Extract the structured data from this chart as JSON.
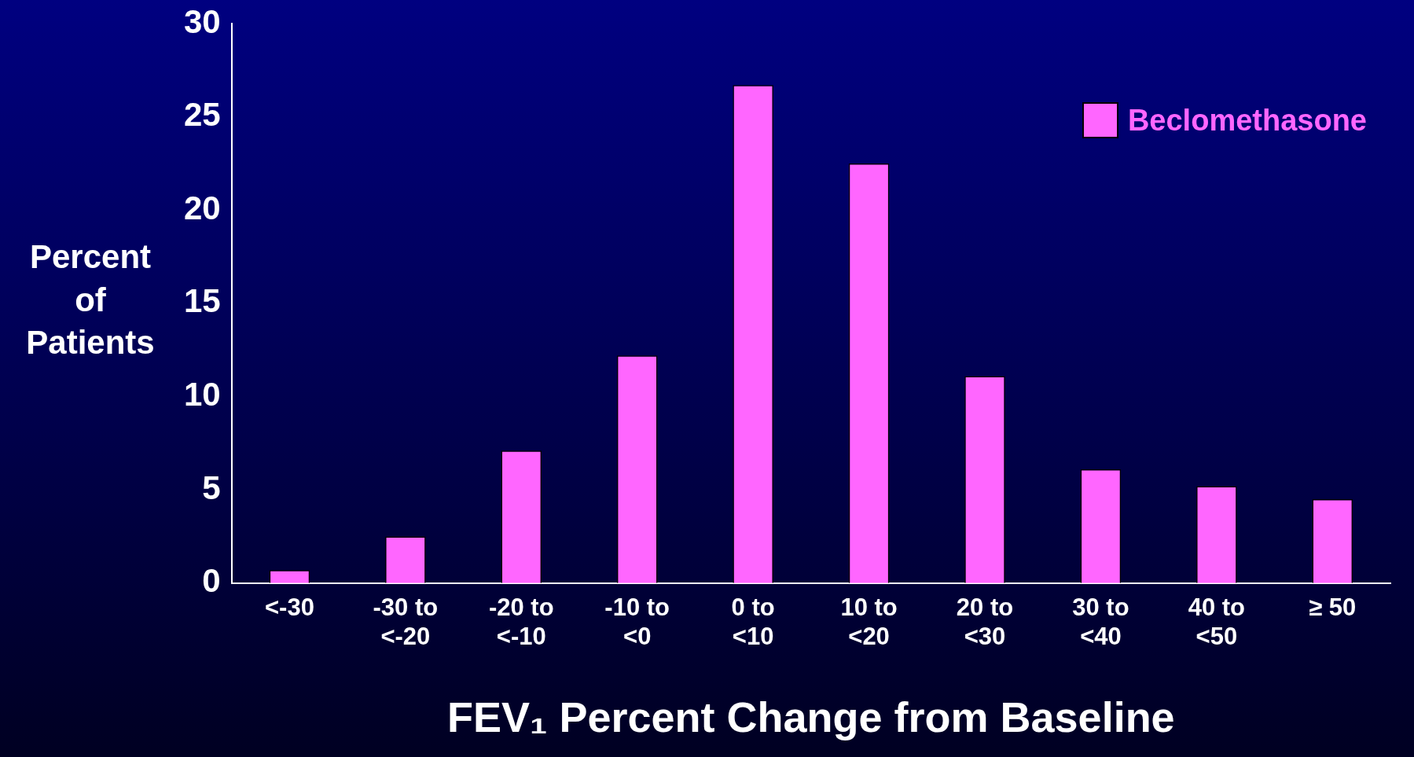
{
  "chart_data": {
    "type": "bar",
    "xlabel": "FEV₁ Percent Change from Baseline",
    "ylabel": "Percent of Patients",
    "categories": [
      "<-30",
      "-30 to <-20",
      "-20 to <-10",
      "-10 to <0",
      "0 to <10",
      "10 to <20",
      "20 to <30",
      "30 to <40",
      "40 to <50",
      "≥ 50"
    ],
    "series": [
      {
        "name": "Beclomethasone",
        "color": "#ff66ff",
        "values": [
          0.7,
          2.5,
          7.1,
          12.2,
          26.7,
          22.5,
          11.1,
          6.1,
          5.2,
          4.5
        ]
      }
    ],
    "ylim": [
      0,
      30
    ],
    "yticks": [
      0,
      5,
      10,
      15,
      20,
      25,
      30
    ],
    "grid": false,
    "legend": "top right"
  }
}
